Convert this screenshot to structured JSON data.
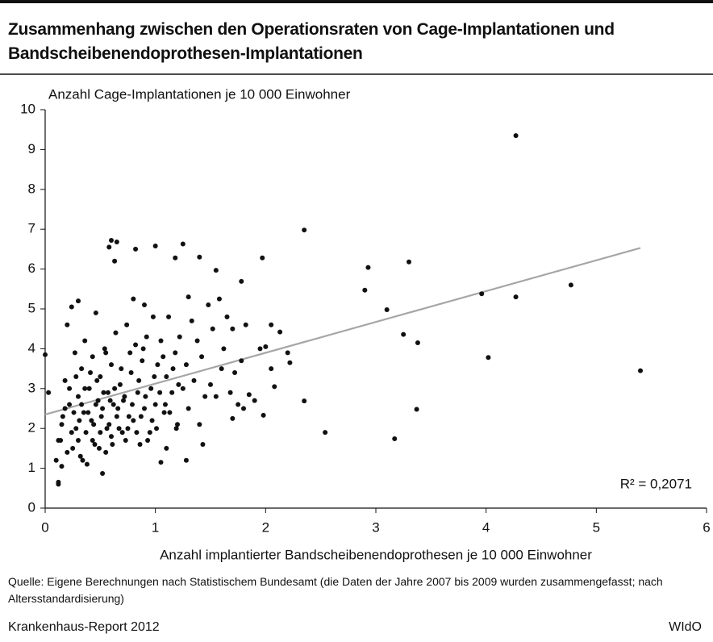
{
  "chart_data": {
    "type": "scatter",
    "title": "Zusammenhang zwischen den Operationsraten von Cage-Implantationen und Bandscheibenendoprothesen-Implantationen",
    "y_label": "Anzahl Cage-Implantationen je 10 000 Einwohner",
    "x_label": "Anzahl implantierter Bandscheibenendoprothesen je 10 000 Einwohner",
    "annotation": "R² = 0,2071",
    "source": "Quelle: Eigene Berechnungen nach Statistischem Bundesamt (die Daten der Jahre 2007 bis 2009 wurden zusammengefasst; nach Altersstandardisierung)",
    "footer_left": "Krankenhaus-Report 2012",
    "footer_right": "WIdO",
    "color": "#111111",
    "trendline": {
      "color": "#a6a6a6",
      "x": [
        0,
        5.4
      ],
      "y": [
        2.35,
        6.53
      ]
    },
    "xlim": [
      0,
      6
    ],
    "xticks": [
      0,
      1,
      2,
      3,
      4,
      5,
      6
    ],
    "ylim": [
      0,
      10
    ],
    "yticks": [
      0,
      1,
      2,
      3,
      4,
      5,
      6,
      7,
      8,
      9,
      10
    ],
    "grid": false,
    "x": [
      4.27,
      2.35,
      4.77,
      5.4,
      3.96,
      4.27,
      4.02,
      2.93,
      3.3,
      2.9,
      3.1,
      3.25,
      3.38,
      3.37,
      3.17,
      2.54,
      2.35,
      1.97,
      1.78,
      1.55,
      1.4,
      1.25,
      1.18,
      1.0,
      0.82,
      0.6,
      0.58,
      0.65,
      0.63,
      0.0,
      0.03,
      0.12,
      0.12,
      0.15,
      1.05,
      1.28,
      1.43,
      0.52,
      2.2,
      2.22,
      2.13,
      2.05,
      2.0,
      2.08,
      1.98,
      2.05,
      1.85,
      1.8,
      1.7,
      0.1,
      0.14,
      0.16,
      0.18,
      0.2,
      0.22,
      0.24,
      0.25,
      0.27,
      0.28,
      0.3,
      0.3,
      0.32,
      0.33,
      0.35,
      0.36,
      0.38,
      0.4,
      0.42,
      0.43,
      0.45,
      0.46,
      0.48,
      0.5,
      0.5,
      0.52,
      0.54,
      0.55,
      0.57,
      0.58,
      0.6,
      0.6,
      0.62,
      0.64,
      0.65,
      0.68,
      0.7,
      0.72,
      0.74,
      0.75,
      0.78,
      0.8,
      0.8,
      0.82,
      0.84,
      0.86,
      0.88,
      0.9,
      0.9,
      0.92,
      0.95,
      0.96,
      0.98,
      1.0,
      1.02,
      1.05,
      1.08,
      1.1,
      1.1,
      1.12,
      1.15,
      1.18,
      1.2,
      1.22,
      1.25,
      1.28,
      1.3,
      1.3,
      1.33,
      1.35,
      1.38,
      1.4,
      1.42,
      1.45,
      1.48,
      1.5,
      1.52,
      1.55,
      1.58,
      1.6,
      1.62,
      1.65,
      1.68,
      1.7,
      1.72,
      1.75,
      1.78,
      1.82,
      1.9,
      1.95,
      0.12,
      0.15,
      0.18,
      0.2,
      0.22,
      0.24,
      0.26,
      0.28,
      0.3,
      0.31,
      0.33,
      0.34,
      0.36,
      0.37,
      0.39,
      0.41,
      0.43,
      0.44,
      0.46,
      0.47,
      0.49,
      0.51,
      0.53,
      0.55,
      0.56,
      0.59,
      0.61,
      0.63,
      0.66,
      0.67,
      0.69,
      0.71,
      0.73,
      0.76,
      0.77,
      0.79,
      0.83,
      0.85,
      0.87,
      0.89,
      0.91,
      0.93,
      0.97,
      0.99,
      1.01,
      1.04,
      1.07,
      1.09,
      1.13,
      1.16,
      1.19,
      1.21
    ],
    "y": [
      9.35,
      6.98,
      5.6,
      3.45,
      5.38,
      5.3,
      3.78,
      6.04,
      6.18,
      5.47,
      4.98,
      4.36,
      4.15,
      2.48,
      1.74,
      1.9,
      2.69,
      6.28,
      5.69,
      5.97,
      6.3,
      6.63,
      6.28,
      6.58,
      6.5,
      6.72,
      6.55,
      6.68,
      6.2,
      3.85,
      2.9,
      0.6,
      0.65,
      1.05,
      1.15,
      1.2,
      1.6,
      0.87,
      3.9,
      3.65,
      4.42,
      4.6,
      4.05,
      3.05,
      2.33,
      3.5,
      2.85,
      2.5,
      2.25,
      1.2,
      1.7,
      2.3,
      3.2,
      4.6,
      2.6,
      5.05,
      1.5,
      3.9,
      2.0,
      5.2,
      2.8,
      1.3,
      3.5,
      2.4,
      4.2,
      1.1,
      3.0,
      2.2,
      3.8,
      1.6,
      4.9,
      2.7,
      1.9,
      3.3,
      2.5,
      4.0,
      1.4,
      2.9,
      2.1,
      3.6,
      1.8,
      2.6,
      4.4,
      2.3,
      3.1,
      1.9,
      2.8,
      4.6,
      2.0,
      3.4,
      5.25,
      2.2,
      4.1,
      2.9,
      1.6,
      3.7,
      5.1,
      2.5,
      4.3,
      1.9,
      3.0,
      4.8,
      2.6,
      3.6,
      4.2,
      2.4,
      1.5,
      3.3,
      4.8,
      2.9,
      3.9,
      2.1,
      4.3,
      3.0,
      3.6,
      5.3,
      2.5,
      4.7,
      3.2,
      4.2,
      2.1,
      3.8,
      2.8,
      5.1,
      3.1,
      4.5,
      2.8,
      5.25,
      3.5,
      4.0,
      4.8,
      2.9,
      4.5,
      3.4,
      2.6,
      3.7,
      4.6,
      2.7,
      4.0,
      1.7,
      2.1,
      2.5,
      1.4,
      3.0,
      1.9,
      2.4,
      3.3,
      1.7,
      2.2,
      2.6,
      1.2,
      3.0,
      1.9,
      2.4,
      3.4,
      1.7,
      2.1,
      2.6,
      3.2,
      1.5,
      2.3,
      2.9,
      3.9,
      2.0,
      2.7,
      1.6,
      3.0,
      2.5,
      2.0,
      3.5,
      2.7,
      1.7,
      2.3,
      3.9,
      2.6,
      1.9,
      3.2,
      2.3,
      4.0,
      2.8,
      1.7,
      2.2,
      3.3,
      2.0,
      2.9,
      3.8,
      2.6,
      2.4,
      3.5,
      2.0,
      3.1
    ]
  }
}
